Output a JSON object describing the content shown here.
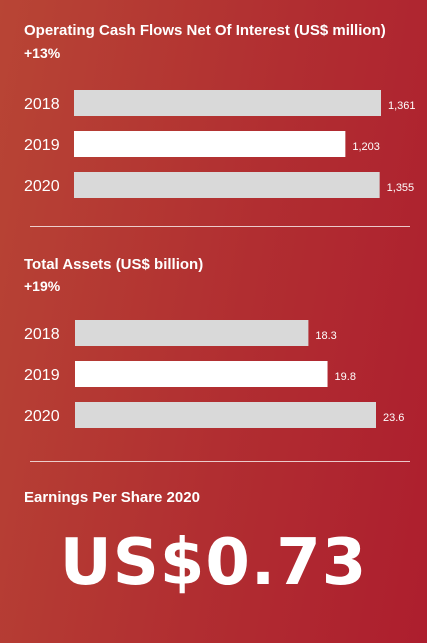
{
  "section1": {
    "title": "Operating Cash Flows Net Of Interest (US$ million)",
    "change": "+13%"
  },
  "section2": {
    "title": "Total Assets (US$ billion)",
    "change": "+19%"
  },
  "eps": {
    "title": "Earnings Per Share 2020",
    "value": "US$0.73"
  },
  "colors": {
    "bar_grey": "#d9d9d9",
    "bar_highlight": "#ffffff",
    "background": "#b12e31"
  },
  "chart_data": [
    {
      "type": "bar",
      "orientation": "horizontal",
      "title": "Operating Cash Flows Net Of Interest (US$ million)",
      "categories": [
        "2018",
        "2019",
        "2020"
      ],
      "values": [
        1361,
        1203,
        1355
      ],
      "value_labels": [
        "1,361",
        "1,203",
        "1,355"
      ],
      "highlight_index": 1,
      "xlim": [
        0,
        1361
      ]
    },
    {
      "type": "bar",
      "orientation": "horizontal",
      "title": "Total Assets (US$ billion)",
      "categories": [
        "2018",
        "2019",
        "2020"
      ],
      "values": [
        18.3,
        19.8,
        23.6
      ],
      "value_labels": [
        "18.3",
        "19.8",
        "23.6"
      ],
      "highlight_index": 1,
      "xlim": [
        0,
        23.6
      ]
    }
  ]
}
